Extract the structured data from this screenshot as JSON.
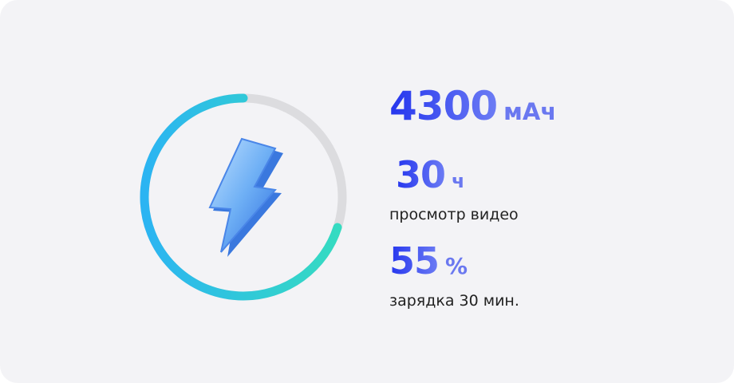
{
  "capacity": {
    "value": "4300",
    "unit": "мАч"
  },
  "video": {
    "value": "30",
    "unit": "ч",
    "label": "просмотр видео"
  },
  "charge": {
    "value": "55",
    "unit": "%",
    "label": "зарядка 30 мин."
  },
  "ring": {
    "progress": 0.7,
    "colors": {
      "start": "#35dcc0",
      "end": "#2bb4f2",
      "track": "#dcdcdf"
    }
  },
  "icons": {
    "center": "lightning-bolt-icon"
  }
}
